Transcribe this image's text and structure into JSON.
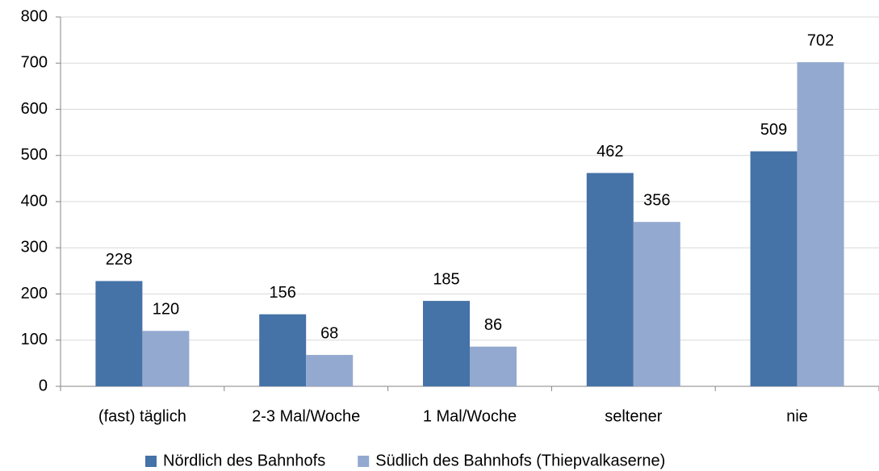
{
  "chart_data": {
    "type": "bar",
    "categories": [
      "(fast) täglich",
      "2-3 Mal/Woche",
      "1 Mal/Woche",
      "seltener",
      "nie"
    ],
    "series": [
      {
        "name": "Nördlich des Bahnhofs",
        "color": "#4572a7",
        "values": [
          228,
          156,
          185,
          462,
          509
        ]
      },
      {
        "name": "Südlich des Bahnhofs (Thiepvalkaserne)",
        "color": "#93a9cf",
        "values": [
          120,
          68,
          86,
          356,
          702
        ]
      }
    ],
    "ylim": [
      0,
      800
    ],
    "yticks": [
      0,
      100,
      200,
      300,
      400,
      500,
      600,
      700,
      800
    ],
    "grid": true,
    "legend": "bottom"
  }
}
